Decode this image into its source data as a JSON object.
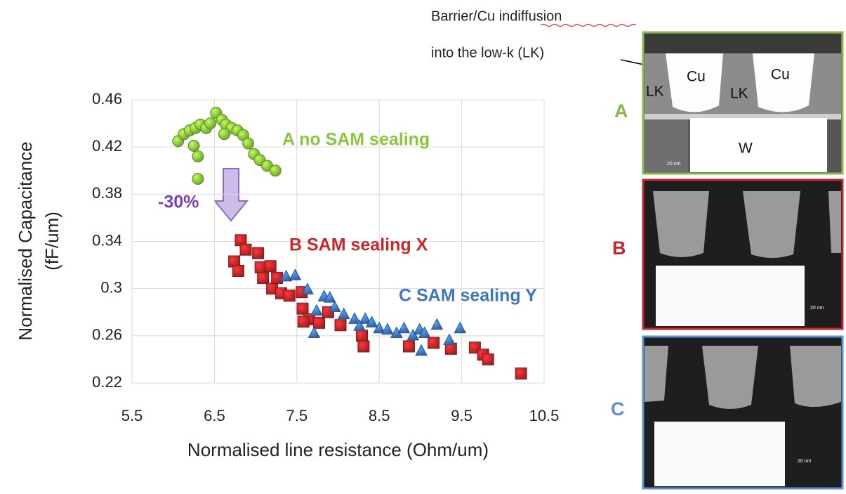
{
  "notes": [
    "Barrier/Cu indiffusion",
    "into the low-k (LK)"
  ],
  "panels": [
    {
      "label": "A",
      "texts": [
        "Cu",
        "Cu",
        "LK",
        "LK",
        "W",
        "20 nm"
      ]
    },
    {
      "label": "B",
      "texts": [
        "20 nm"
      ]
    },
    {
      "label": "C",
      "texts": [
        "20 nm"
      ]
    }
  ],
  "chart_data": {
    "type": "scatter",
    "x_label": "Normalised line resistance (Ohm/um)",
    "y_label": [
      "Normalised Capacitance",
      "(fF/um)"
    ],
    "annotations": [
      "-30%"
    ],
    "xlim": [
      5.5,
      10.5
    ],
    "xticks": [
      5.5,
      6.5,
      7.5,
      8.5,
      9.5,
      10.5
    ],
    "ylim": [
      0.22,
      0.46
    ],
    "yticks": [
      0.22,
      0.26,
      0.3,
      0.34,
      0.38,
      0.42,
      0.46
    ],
    "grid": true,
    "series": [
      {
        "name": "A no SAM sealing",
        "color": "#8cc63f",
        "marker": "circle",
        "x": [
          6.06,
          6.13,
          6.2,
          6.27,
          6.33,
          6.4,
          6.45,
          6.52,
          6.59,
          6.64,
          6.71,
          6.78,
          6.85,
          6.91,
          6.98,
          7.05,
          7.14,
          7.24,
          6.3,
          6.3,
          6.25,
          6.62
        ],
        "y": [
          0.425,
          0.431,
          0.434,
          0.436,
          0.439,
          0.436,
          0.44,
          0.449,
          0.443,
          0.439,
          0.436,
          0.434,
          0.43,
          0.423,
          0.414,
          0.409,
          0.404,
          0.4,
          0.412,
          0.393,
          0.421,
          0.431
        ]
      },
      {
        "name": "B SAM sealing X",
        "color": "#c8282b",
        "marker": "square",
        "x": [
          6.82,
          6.74,
          6.79,
          6.88,
          7.03,
          7.06,
          7.18,
          7.09,
          7.2,
          7.26,
          7.31,
          7.41,
          7.56,
          7.57,
          7.65,
          7.58,
          7.77,
          7.88,
          8.03,
          8.29,
          8.31,
          8.86,
          9.16,
          9.37,
          9.66,
          9.76,
          9.82,
          10.22
        ],
        "y": [
          0.341,
          0.323,
          0.315,
          0.333,
          0.33,
          0.318,
          0.319,
          0.309,
          0.3,
          0.309,
          0.296,
          0.294,
          0.297,
          0.283,
          0.274,
          0.272,
          0.271,
          0.28,
          0.269,
          0.26,
          0.251,
          0.251,
          0.254,
          0.249,
          0.25,
          0.244,
          0.24,
          0.228
        ]
      },
      {
        "name": "C SAM sealing Y",
        "color": "#3f77bd",
        "marker": "triangle",
        "x": [
          7.37,
          7.48,
          7.63,
          7.83,
          7.9,
          7.74,
          7.96,
          8.07,
          8.2,
          8.26,
          8.33,
          8.41,
          8.5,
          8.6,
          8.71,
          8.8,
          8.91,
          8.99,
          9.05,
          9.2,
          9.35,
          9.48,
          7.71,
          9.01
        ],
        "y": [
          0.31,
          0.311,
          0.299,
          0.293,
          0.292,
          0.281,
          0.284,
          0.278,
          0.274,
          0.268,
          0.274,
          0.271,
          0.266,
          0.265,
          0.262,
          0.266,
          0.26,
          0.265,
          0.262,
          0.269,
          0.256,
          0.266,
          0.262,
          0.247
        ]
      }
    ]
  }
}
